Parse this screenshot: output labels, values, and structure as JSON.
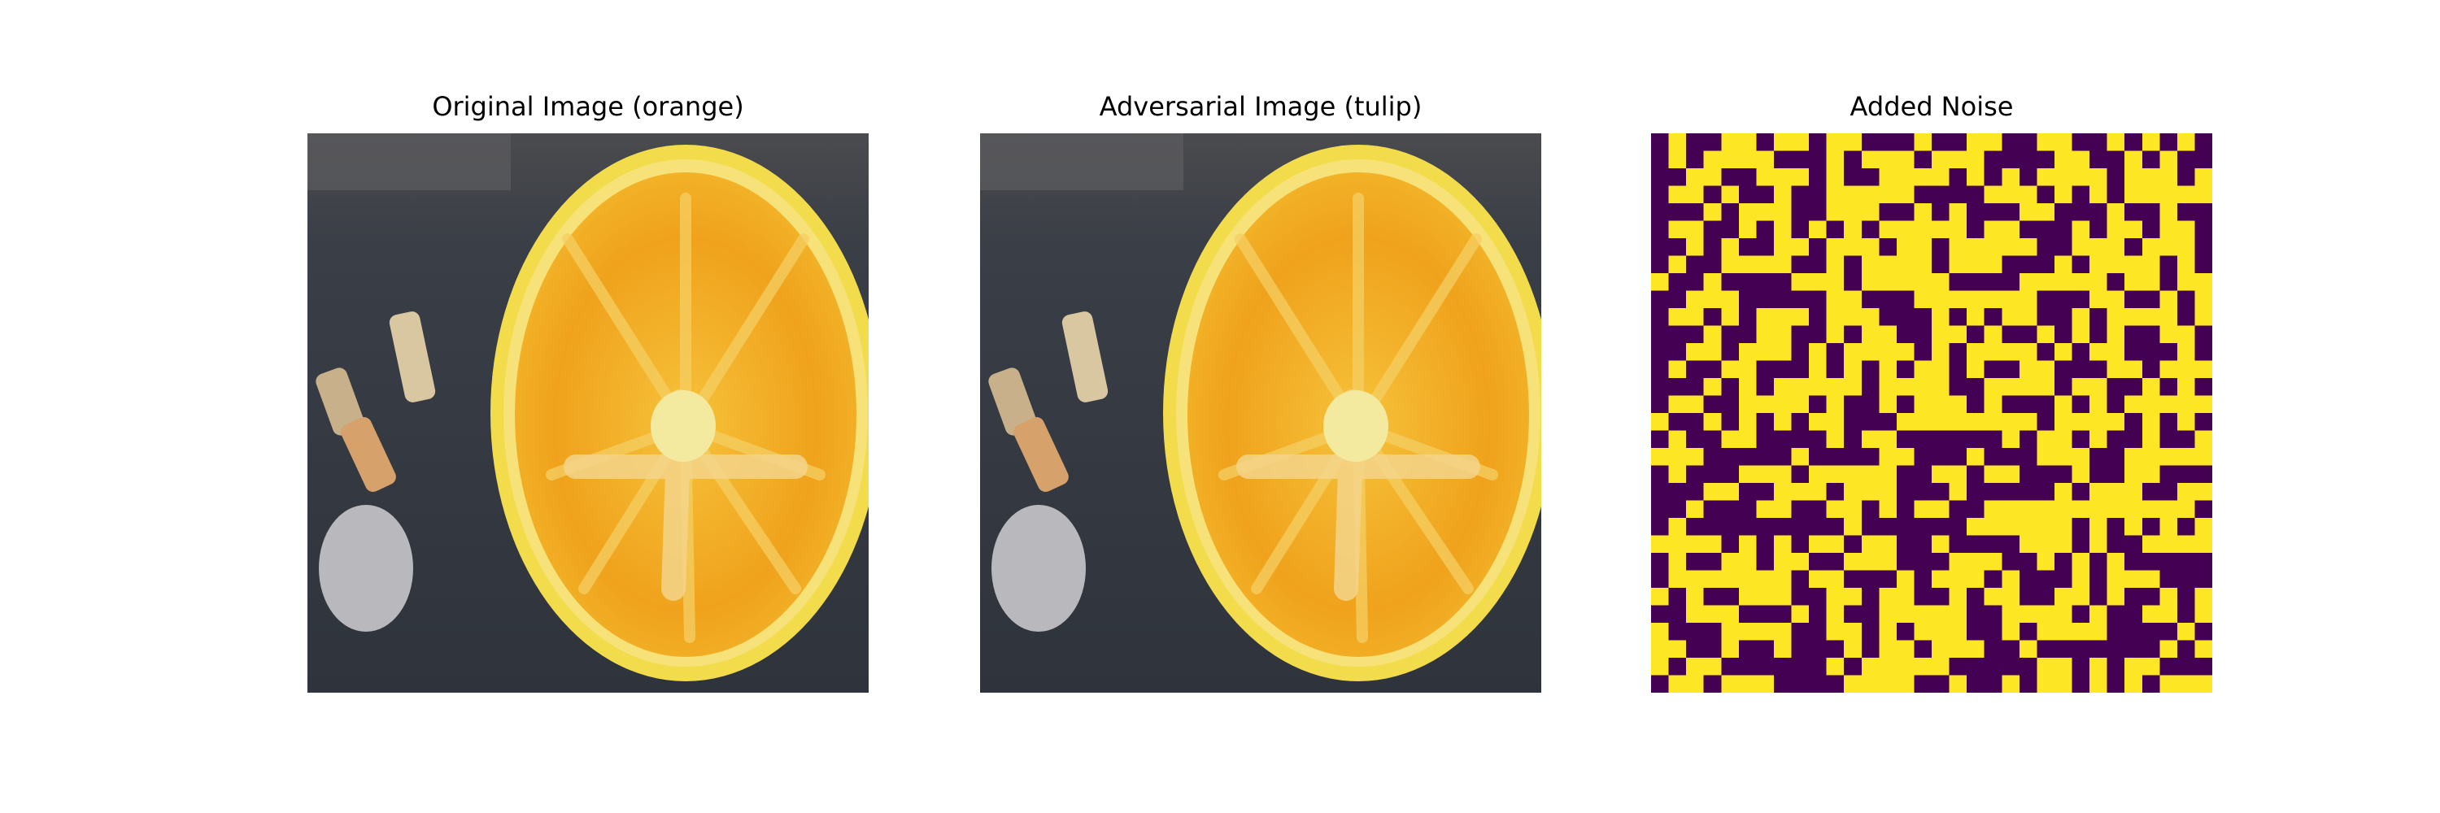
{
  "figure": {
    "titles": [
      "Original Image (orange)",
      "Adversarial Image (tulip)",
      "Added Noise"
    ]
  },
  "chart_data": [
    {
      "type": "image",
      "title": "Original Image (orange)",
      "content": "photo of a halved orange slice on a dark background",
      "colors": {
        "background": "#3a3e46",
        "rind": "#f3dc4c",
        "pulp": "#f0a21c",
        "center": "#f3eaa0",
        "pebble": "#b9b9bd"
      }
    },
    {
      "type": "image",
      "title": "Adversarial Image (tulip)",
      "content": "nearly identical photo of the orange slice with imperceptible perturbation",
      "colors": {
        "background": "#3a3e46",
        "rind": "#f3dc4c",
        "pulp": "#f0a21c",
        "center": "#f3eaa0",
        "pebble": "#b9b9bd"
      }
    },
    {
      "type": "heatmap",
      "title": "Added Noise",
      "colormap": "viridis-binary",
      "colors": {
        "high": "#fde725",
        "low": "#440154"
      },
      "rows": 32,
      "cols": 32,
      "grid": [
        "01001101101100010011001100101010",
        "01011110001011101110000110010100",
        "00110011101001111010101111011101",
        "01101001001111100001110101011111",
        "00010111001110010100011000100100",
        "01100101010101111101100010110110",
        "00101001101110110111110011101110",
        "01001111001011110111000101111010",
        "10010000111011111000011111011011",
        "00111000001100011111110001100101",
        "01101011101110001010110010111101",
        "00010011001011001101001010100110",
        "00110111010111101011110101100010",
        "01001100010101011010011000110111",
        "00010101111101111001111011001010",
        "01100111101001011101000101011111",
        "10010101011000111111110111101010",
        "01001100001011000000101101001001",
        "11100000100001100010001110011111",
        "01000111011111001101100010011000",
        "00011001110111000100000101110011",
        "00100011001101011001111111111110",
        "01000000000100000011111101010101",
        "11110101011011001000011101001111",
        "01001101100111000111001010100000",
        "01111111011000101110100010111000",
        "10100111001101100101100110100101",
        "00111000101001111100111101001101",
        "10001111001101011100101111000010",
        "11001001000101101110010000000101",
        "10110000001011111000001101011000",
        "01101110000111100100101101010111"
      ]
    }
  ]
}
